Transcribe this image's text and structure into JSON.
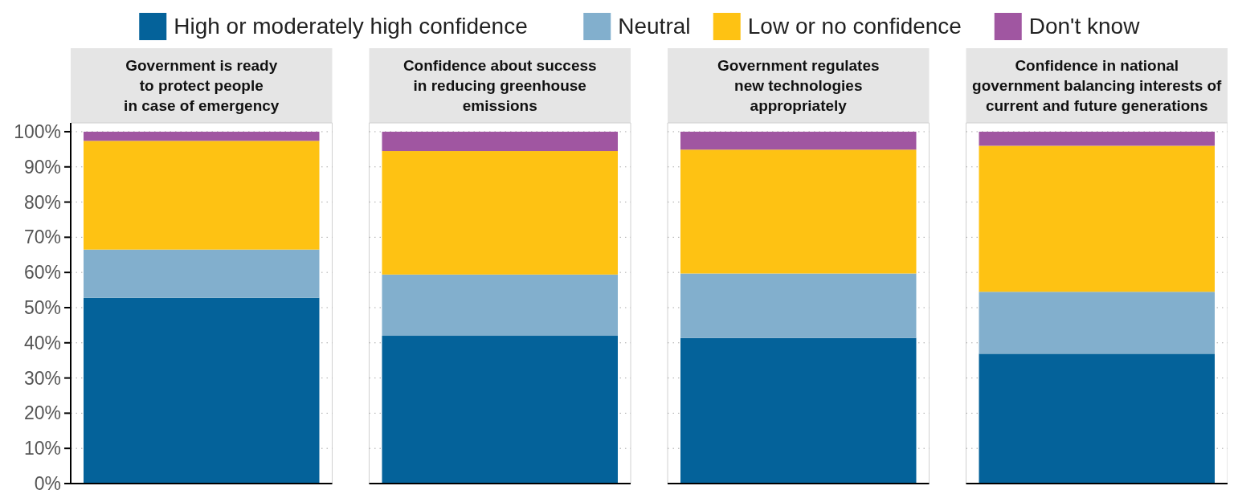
{
  "chart_data": {
    "type": "bar",
    "stacked": true,
    "legend": "top",
    "grid": "y",
    "categories": [
      "Government is ready\nto protect people\nin case of emergency",
      "Confidence about success\nin reducing greenhouse\nemissions",
      "Government regulates\nnew technologies\nappropriately",
      "Confidence in national\ngovernment balancing interests of\ncurrent and future generations"
    ],
    "series": [
      {
        "name": "High or moderately high confidence",
        "color": "#04629a",
        "values": [
          52.8,
          42,
          41.4,
          36.9
        ]
      },
      {
        "name": "Neutral",
        "color": "#82afcd",
        "values": [
          13.7,
          17.4,
          18.3,
          17.6
        ]
      },
      {
        "name": "Low or no confidence",
        "color": "#fec213",
        "values": [
          30.9,
          35.1,
          35.2,
          41.5
        ]
      },
      {
        "name": "Don't know",
        "color": "#a056a1",
        "values": [
          2.6,
          5.5,
          5.1,
          4
        ]
      }
    ],
    "ylim": [
      0,
      102.5
    ],
    "yticks": [
      {
        "value": 0,
        "label": "0%"
      },
      {
        "value": 10,
        "label": "10%"
      },
      {
        "value": 20,
        "label": "20%"
      },
      {
        "value": 30,
        "label": "30%"
      },
      {
        "value": 40,
        "label": "40%"
      },
      {
        "value": 50,
        "label": "50%"
      },
      {
        "value": 60,
        "label": "60%"
      },
      {
        "value": 70,
        "label": "70%"
      },
      {
        "value": 80,
        "label": "80%"
      },
      {
        "value": 90,
        "label": "90%"
      },
      {
        "value": 100,
        "label": "100%"
      }
    ]
  }
}
